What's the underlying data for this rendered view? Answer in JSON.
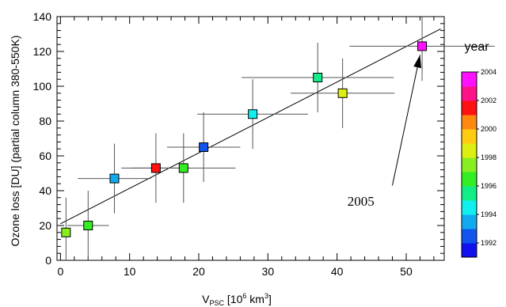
{
  "chart_data": {
    "type": "scatter",
    "xlabel": "V",
    "xlabel_sub": "PSC",
    "xlabel_unit_pre": " [10",
    "xlabel_unit_exp1": "6",
    "xlabel_unit_mid": " km",
    "xlabel_unit_exp2": "3",
    "xlabel_unit_post": "]",
    "ylabel": "Ozone loss [DU] (partial column 380-550K)",
    "xlim": [
      -0.5,
      55.5
    ],
    "ylim": [
      0,
      140
    ],
    "xticks": [
      "0",
      "10",
      "20",
      "30",
      "40",
      "50"
    ],
    "yticks": [
      "0",
      "20",
      "40",
      "60",
      "80",
      "100",
      "120",
      "140"
    ],
    "grid": false,
    "points": [
      {
        "year": 1999,
        "x": 0.8,
        "y": 16,
        "xerr": 0,
        "yerr_low": 16,
        "yerr_high": 20,
        "color": "#88ee22"
      },
      {
        "year": 1998,
        "x": 4.0,
        "y": 20,
        "xerr": 3.0,
        "yerr_low": 20,
        "yerr_high": 20,
        "color": "#33ee22"
      },
      {
        "year": 1994,
        "x": 7.8,
        "y": 47,
        "xerr": 5.3,
        "yerr_low": 20,
        "yerr_high": 20,
        "color": "#11aaee"
      },
      {
        "year": 2003,
        "x": 13.8,
        "y": 53,
        "xerr": 5.0,
        "yerr_low": 20,
        "yerr_high": 20,
        "color": "#ff1111"
      },
      {
        "year": 1998,
        "x": 17.8,
        "y": 53,
        "xerr": 7.5,
        "yerr_low": 20,
        "yerr_high": 20,
        "color": "#33ee22"
      },
      {
        "year": 1993,
        "x": 20.7,
        "y": 65,
        "xerr": 5.3,
        "yerr_low": 20,
        "yerr_high": 20,
        "color": "#1155ee"
      },
      {
        "year": 1995,
        "x": 27.8,
        "y": 84,
        "xerr": 8.0,
        "yerr_low": 20,
        "yerr_high": 20,
        "color": "#11eeee"
      },
      {
        "year": 1996,
        "x": 37.2,
        "y": 105,
        "xerr": 11.0,
        "yerr_low": 20,
        "yerr_high": 20,
        "color": "#11ee88"
      },
      {
        "year": 2000,
        "x": 40.8,
        "y": 96,
        "xerr": 7.5,
        "yerr_low": 20,
        "yerr_high": 20,
        "color": "#ddee11"
      },
      {
        "year": 2005,
        "x": 52.3,
        "y": 123,
        "xerr": 10.5,
        "yerr_low": 20,
        "yerr_high": 20,
        "color": "#ff11ff"
      }
    ],
    "fit_line": {
      "x": [
        0,
        55
      ],
      "y": [
        21,
        133
      ]
    },
    "annotation": {
      "text": "2005",
      "text_x": 41.5,
      "text_y": 34,
      "arrow_from": [
        48.0,
        43
      ],
      "arrow_to": [
        52.0,
        118
      ]
    },
    "colorbar": {
      "title": "year",
      "labels": [
        "1992",
        "1994",
        "1996",
        "1998",
        "2000",
        "2002",
        "2004"
      ],
      "colors": [
        "#1111ee",
        "#1155ee",
        "#11aaee",
        "#11eeee",
        "#11ee88",
        "#33ee22",
        "#88ee22",
        "#ddee11",
        "#ffcc11",
        "#ff8811",
        "#ff1111",
        "#ff1188",
        "#ff11ff"
      ]
    }
  }
}
